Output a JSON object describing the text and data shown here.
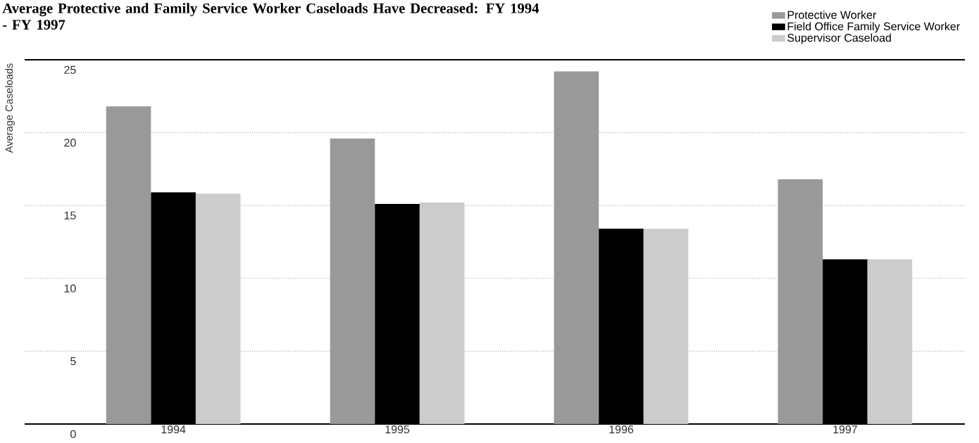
{
  "chart_data": {
    "type": "bar",
    "title": "Average Protective and Family Service Worker Caseloads Have Decreased: FY 1994 - FY 1997",
    "ylabel": "Average Caseloads",
    "categories": [
      "1994",
      "1995",
      "1996",
      "1997"
    ],
    "series": [
      {
        "name": "Protective Worker",
        "color": "#999999",
        "values": [
          21.8,
          19.6,
          24.2,
          16.8
        ]
      },
      {
        "name": "Field Office Family Service Worker",
        "color": "#000000",
        "values": [
          15.9,
          15.1,
          13.4,
          11.3
        ]
      },
      {
        "name": "Supervisor Caseload",
        "color": "#cccccc",
        "values": [
          15.8,
          15.2,
          13.4,
          11.3
        ]
      }
    ],
    "ylim": [
      0,
      25
    ],
    "yticks": [
      0,
      5,
      10,
      15,
      20,
      25
    ],
    "grid": "y",
    "legend": "top right"
  }
}
